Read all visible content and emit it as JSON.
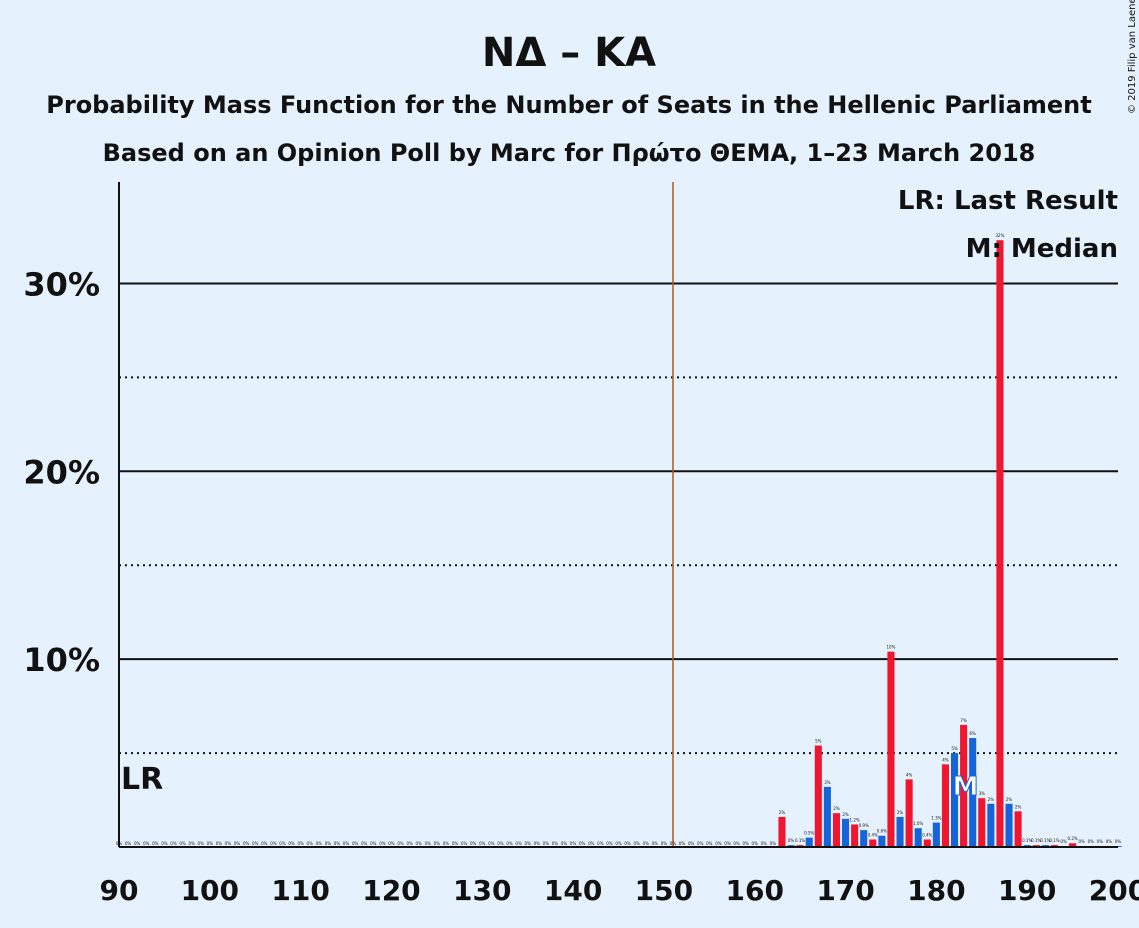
{
  "title": "ΝΔ – ΚΑ",
  "subtitle1": "Probability Mass Function for the Number of Seats in the Hellenic Parliament",
  "subtitle2": "Based on an Opinion Poll by Marc for Πρώτο ΘΕΜΑ, 1–23 March 2018",
  "copyright": "© 2019 Filip van Laenen",
  "legend": {
    "last_result": "LR: Last Result",
    "median": "M: Median"
  },
  "lr_marker": "LR",
  "median_marker": "M",
  "colors": {
    "background": "#e5f1fd",
    "blue": "#1565d8",
    "red": "#f0162f",
    "majority_line": "#b05a16",
    "text": "#111111"
  },
  "chart_data": {
    "type": "bar",
    "x_range": [
      90,
      200
    ],
    "ylim": [
      0,
      35.4
    ],
    "y_ticks": [
      {
        "value": 10,
        "label": "10%"
      },
      {
        "value": 20,
        "label": "20%"
      },
      {
        "value": 30,
        "label": "30%"
      }
    ],
    "y_dotted": [
      5,
      15,
      25
    ],
    "x_ticks": [
      90,
      100,
      110,
      120,
      130,
      140,
      150,
      160,
      170,
      180,
      190,
      200
    ],
    "majority": 151,
    "last_result": 90,
    "median": 183,
    "bars": [
      {
        "x": 163,
        "value": 1.6,
        "label": "2%",
        "color": "red"
      },
      {
        "x": 164,
        "value": 0.1,
        "label": "0%",
        "color": "blue"
      },
      {
        "x": 165,
        "value": 0.1,
        "label": "0.1%",
        "color": "red"
      },
      {
        "x": 166,
        "value": 0.5,
        "label": "0.5%",
        "color": "blue"
      },
      {
        "x": 167,
        "value": 5.4,
        "label": "5%",
        "color": "red"
      },
      {
        "x": 168,
        "value": 3.2,
        "label": "3%",
        "color": "blue"
      },
      {
        "x": 169,
        "value": 1.8,
        "label": "2%",
        "color": "red"
      },
      {
        "x": 170,
        "value": 1.5,
        "label": "2%",
        "color": "blue"
      },
      {
        "x": 171,
        "value": 1.2,
        "label": "1.2%",
        "color": "red"
      },
      {
        "x": 172,
        "value": 0.9,
        "label": "0.9%",
        "color": "blue"
      },
      {
        "x": 173,
        "value": 0.4,
        "label": "0.4%",
        "color": "red"
      },
      {
        "x": 174,
        "value": 0.6,
        "label": "0.6%",
        "color": "blue"
      },
      {
        "x": 175,
        "value": 10.4,
        "label": "10%",
        "color": "red"
      },
      {
        "x": 176,
        "value": 1.6,
        "label": "2%",
        "color": "blue"
      },
      {
        "x": 177,
        "value": 3.6,
        "label": "4%",
        "color": "red"
      },
      {
        "x": 178,
        "value": 1.0,
        "label": "1.0%",
        "color": "blue"
      },
      {
        "x": 179,
        "value": 0.4,
        "label": "0.4%",
        "color": "red"
      },
      {
        "x": 180,
        "value": 1.3,
        "label": "1.3%",
        "color": "blue"
      },
      {
        "x": 181,
        "value": 4.4,
        "label": "4%",
        "color": "red"
      },
      {
        "x": 182,
        "value": 5.0,
        "label": "5%",
        "color": "blue"
      },
      {
        "x": 183,
        "value": 6.5,
        "label": "7%",
        "color": "red"
      },
      {
        "x": 184,
        "value": 5.8,
        "label": "6%",
        "color": "blue"
      },
      {
        "x": 185,
        "value": 2.6,
        "label": "3%",
        "color": "red"
      },
      {
        "x": 186,
        "value": 2.3,
        "label": "2%",
        "color": "blue"
      },
      {
        "x": 187,
        "value": 32.3,
        "label": "32%",
        "color": "red"
      },
      {
        "x": 188,
        "value": 2.3,
        "label": "2%",
        "color": "blue"
      },
      {
        "x": 189,
        "value": 1.9,
        "label": "2%",
        "color": "red"
      },
      {
        "x": 190,
        "value": 0.1,
        "label": "0.1%",
        "color": "blue"
      },
      {
        "x": 191,
        "value": 0.1,
        "label": "0.1%",
        "color": "red"
      },
      {
        "x": 192,
        "value": 0.1,
        "label": "0.1%",
        "color": "blue"
      },
      {
        "x": 193,
        "value": 0.1,
        "label": "0.1%",
        "color": "red"
      },
      {
        "x": 194,
        "value": 0.05,
        "label": "0%",
        "color": "blue"
      },
      {
        "x": 195,
        "value": 0.2,
        "label": "0.2%",
        "color": "red"
      },
      {
        "x": 196,
        "value": 0.05,
        "label": "0%",
        "color": "blue"
      },
      {
        "x": 197,
        "value": 0.05,
        "label": "0%",
        "color": "red"
      },
      {
        "x": 198,
        "value": 0.05,
        "label": "0%",
        "color": "blue"
      },
      {
        "x": 199,
        "value": 0.05,
        "label": "0%",
        "color": "red"
      },
      {
        "x": 200,
        "value": 0.05,
        "label": "0%",
        "color": "blue"
      }
    ],
    "zero_label": "0%"
  }
}
